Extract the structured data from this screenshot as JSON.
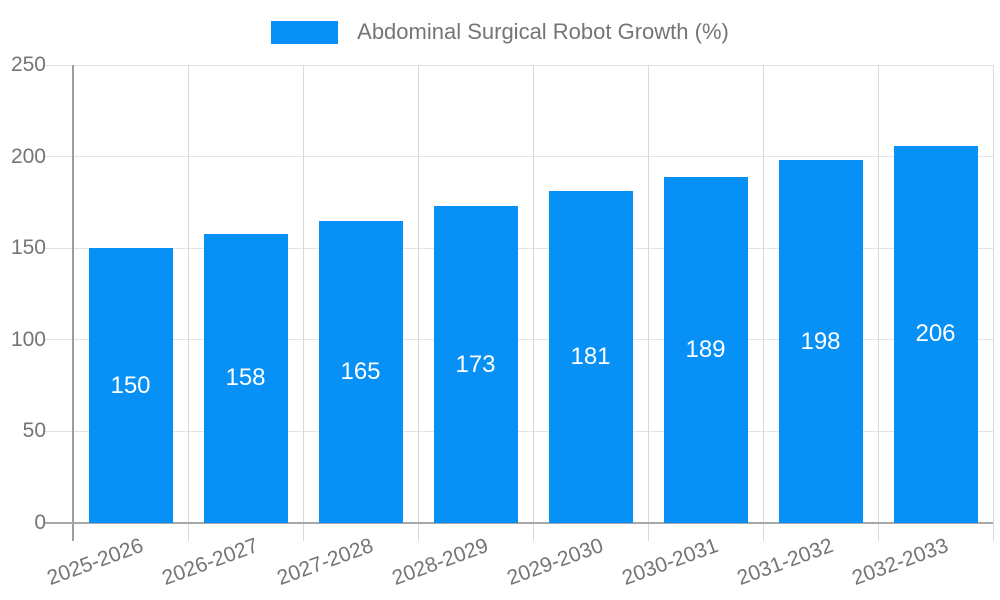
{
  "chart_data": {
    "type": "bar",
    "title": "Abdominal Surgical Robot Growth (%)",
    "legend": {
      "label": "Abdominal Surgical Robot Growth (%)",
      "position": "top",
      "swatch_color": "#0791f7"
    },
    "categories": [
      "2025-2026",
      "2026-2027",
      "2027-2028",
      "2028-2029",
      "2029-2030",
      "2030-2031",
      "2031-2032",
      "2032-2033"
    ],
    "values": [
      150,
      158,
      165,
      173,
      181,
      189,
      198,
      206
    ],
    "xlabel": "",
    "ylabel": "",
    "ylim": [
      0,
      250
    ],
    "yticks": [
      0,
      50,
      100,
      150,
      200,
      250
    ],
    "grid": true,
    "x_label_rotation_deg": -20,
    "bar_color": "#0791f7",
    "value_label_color": "#ffffff",
    "axis_label_color": "#757575",
    "gridline_color": "#e3e3e3",
    "axis_line_color": "#9e9e9e",
    "background_color": "#ffffff"
  }
}
